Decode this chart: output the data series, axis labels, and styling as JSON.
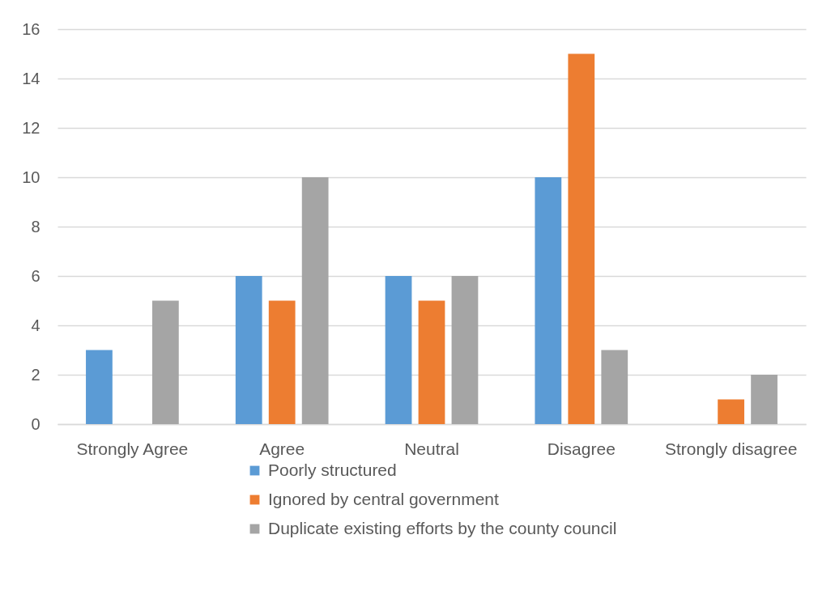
{
  "chart_data": {
    "type": "bar",
    "categories": [
      "Strongly Agree",
      "Agree",
      "Neutral",
      "Disagree",
      "Strongly disagree"
    ],
    "series": [
      {
        "name": "Poorly structured",
        "color": "#5b9bd5",
        "values": [
          3,
          6,
          6,
          10,
          0
        ]
      },
      {
        "name": "Ignored by central government",
        "color": "#ed7d31",
        "values": [
          0,
          5,
          5,
          15,
          1
        ]
      },
      {
        "name": "Duplicate existing efforts by the county council",
        "color": "#a5a5a5",
        "values": [
          5,
          10,
          6,
          3,
          2
        ]
      }
    ],
    "ylim": [
      0,
      16
    ],
    "yticks": [
      0,
      2,
      4,
      6,
      8,
      10,
      12,
      14,
      16
    ],
    "grid": true,
    "legend": "bottom"
  }
}
